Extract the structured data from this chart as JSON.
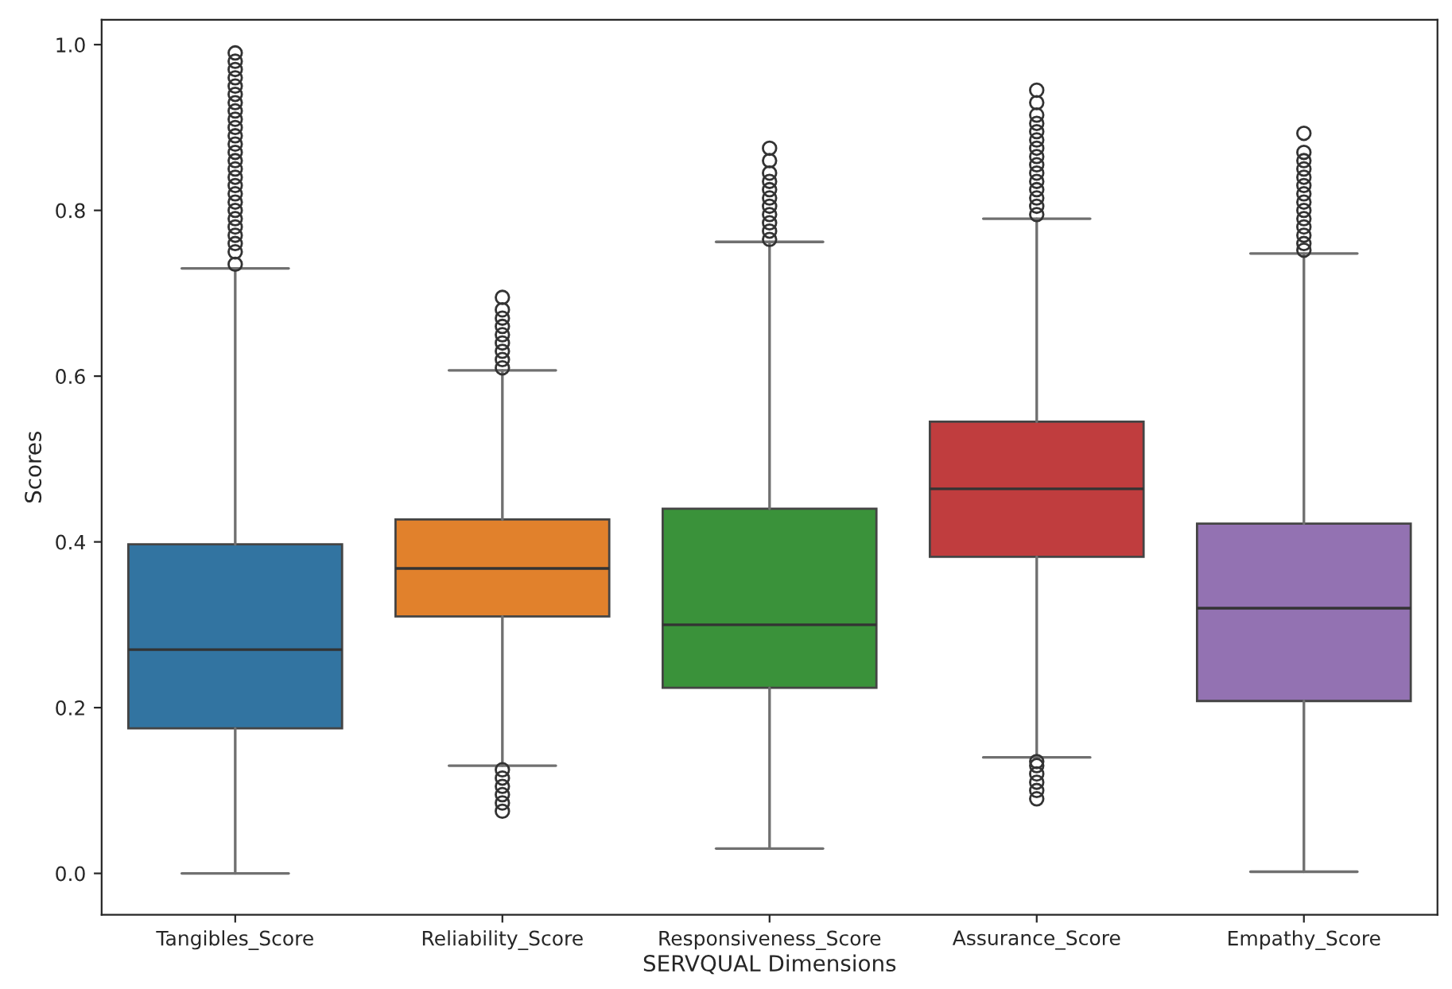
{
  "chart_data": {
    "type": "box",
    "xlabel": "SERVQUAL Dimensions",
    "ylabel": "Scores",
    "categories": [
      "Tangibles_Score",
      "Reliability_Score",
      "Responsiveness_Score",
      "Assurance_Score",
      "Empathy_Score"
    ],
    "colors": [
      "#3274a1",
      "#e1812c",
      "#3a923a",
      "#c03d3e",
      "#9372b2"
    ],
    "boxes": [
      {
        "low": 0.0,
        "q1": 0.175,
        "median": 0.27,
        "q3": 0.397,
        "high": 0.73,
        "outliers": [
          0.735,
          0.75,
          0.76,
          0.77,
          0.78,
          0.79,
          0.8,
          0.81,
          0.82,
          0.83,
          0.84,
          0.85,
          0.86,
          0.87,
          0.88,
          0.89,
          0.9,
          0.91,
          0.92,
          0.93,
          0.94,
          0.95,
          0.96,
          0.97,
          0.98,
          0.99
        ]
      },
      {
        "low": 0.13,
        "q1": 0.31,
        "median": 0.368,
        "q3": 0.427,
        "high": 0.607,
        "outliers": [
          0.075,
          0.085,
          0.095,
          0.105,
          0.115,
          0.125,
          0.61,
          0.62,
          0.63,
          0.64,
          0.65,
          0.66,
          0.67,
          0.68,
          0.695
        ]
      },
      {
        "low": 0.03,
        "q1": 0.224,
        "median": 0.3,
        "q3": 0.44,
        "high": 0.762,
        "outliers": [
          0.765,
          0.775,
          0.785,
          0.795,
          0.805,
          0.815,
          0.825,
          0.835,
          0.845,
          0.86,
          0.875
        ]
      },
      {
        "low": 0.14,
        "q1": 0.382,
        "median": 0.464,
        "q3": 0.545,
        "high": 0.79,
        "outliers": [
          0.09,
          0.1,
          0.11,
          0.12,
          0.13,
          0.135,
          0.795,
          0.805,
          0.815,
          0.825,
          0.835,
          0.845,
          0.855,
          0.865,
          0.875,
          0.885,
          0.895,
          0.905,
          0.915,
          0.93,
          0.945
        ]
      },
      {
        "low": 0.002,
        "q1": 0.208,
        "median": 0.32,
        "q3": 0.422,
        "high": 0.748,
        "outliers": [
          0.752,
          0.76,
          0.77,
          0.78,
          0.79,
          0.8,
          0.81,
          0.82,
          0.83,
          0.84,
          0.85,
          0.86,
          0.87,
          0.893
        ]
      }
    ],
    "ylim": [
      -0.05,
      1.03
    ],
    "yticks": [
      {
        "value": 0,
        "label": "0.0"
      },
      0.2,
      0.4,
      0.6,
      0.8,
      {
        "value": 1,
        "label": "1.0"
      }
    ],
    "grid": false
  }
}
